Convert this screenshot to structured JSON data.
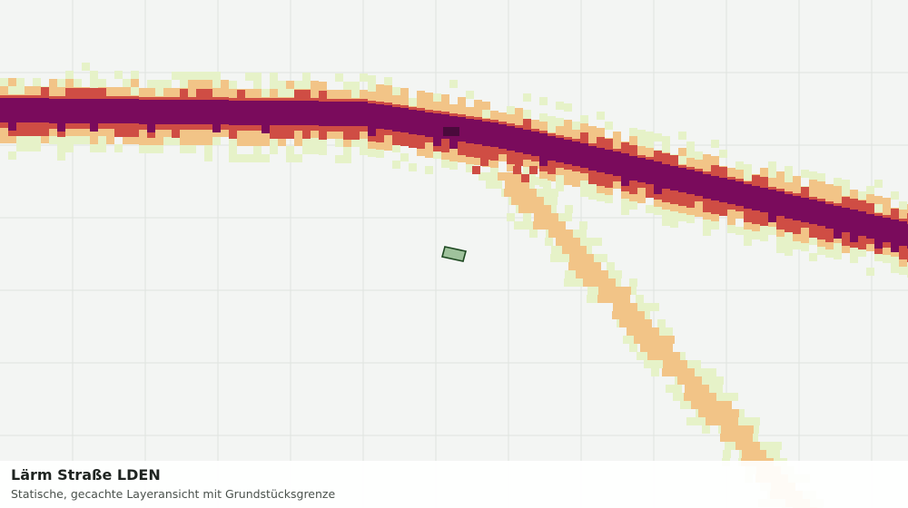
{
  "title": "Lärm Straße LDEN",
  "subtitle": "Statische, gecachte Layeransicht mit Grundstücksgrenze",
  "colors": {
    "background": "#f3f5f3",
    "grid": "#dfe3df",
    "class_1": "#e6f2c8",
    "class_2": "#f2c487",
    "class_3": "#cf4d44",
    "class_4": "#7a0b5c",
    "class_5": "#4a0a3c",
    "parcel_fill": "#9fc29c",
    "parcel_stroke": "#1f4a22"
  },
  "icons": {
    "parcel": "parcel-boundary-polygon"
  }
}
